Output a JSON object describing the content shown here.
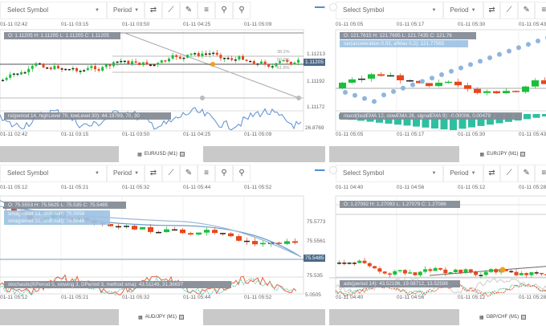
{
  "toolbar": {
    "select_symbol": "Select Symbol",
    "period": "Period",
    "icons": [
      "swap-icon",
      "chart-type-icon",
      "pencil-icon",
      "indicators-icon",
      "zoom-out-icon",
      "zoom-in-icon"
    ]
  },
  "panels": [
    {
      "symbol_tab": "EUR/USD (M1)",
      "times": [
        "01-11 02:42",
        "01-11 03:15",
        "01-11 03:50",
        "01-11 04:25",
        "01-11 05:09"
      ],
      "ohlc": "O: 1.11205 H: 1.11205 L: 1.11205 C: 1.11205",
      "prices": [
        "1.11213",
        "1.11192",
        "1.11172"
      ],
      "current_price": "1.11205",
      "fib_levels": [
        "38.2%",
        "50.0%",
        "61.8%"
      ],
      "indicator": "rsi(period 14, highLevel 70, lowLevel 30): 44.19789, 70, 30",
      "indicator_axis": "26.8769"
    },
    {
      "symbol_tab": "EUR/JPY (M1)",
      "times": [
        "01-11 05:05",
        "01-11 05:17",
        "01-11 05:30",
        "01-11 05:43"
      ],
      "ohlc": "O: 121.7615 H: 121.7695 L: 121.7435 C: 121.76",
      "overlay": "sar(acceleration 0.02, afMax 0.2): 121.77565",
      "indicator": "macd(fastEMA 12, slowEMA 26, signalEMA 9): -0.00006, 0.00479"
    },
    {
      "symbol_tab": "AUD/JPY (M1)",
      "times": [
        "01-11 05:12",
        "01-11 05:21",
        "01-11 05:32",
        "01-11 05:44",
        "01-11 05:52"
      ],
      "ohlc": "O: 75.5553 H: 75.5625 L: 75.535 C: 75.5485",
      "overlays": [
        "sma(period 13, shift null): 75.5558",
        "sma(period 30, shift null): 75.5548"
      ],
      "prices": [
        "75.57733",
        "75.55617",
        "75.535"
      ],
      "current_price": "75.5485",
      "indicator": "stochastic(KPeriod 5, slowing 3, DPeriod 3, method sma): 43.51149, 31.36697",
      "indicator_axis": "5.0505"
    },
    {
      "symbol_tab": "GBP/CHF (M1)",
      "times": [
        "01-11 04:40",
        "01-11 04:56",
        "01-11 05:12",
        "01-11 05:28"
      ],
      "ohlc": "O: 1.27092 H: 1.27093 L: 1.27079 C: 1.27086",
      "indicator": "adx(period 14): 43.52196, 19.08712, 13.52598"
    }
  ],
  "colors": {
    "up": "#1bbf3a",
    "down": "#e8471c",
    "sar": "#8fb5de",
    "macd": "#2fbfa0",
    "sma": "#6a9ccc",
    "rsi": "#5b8fcf",
    "current_price_bg": "#4d6a88"
  }
}
